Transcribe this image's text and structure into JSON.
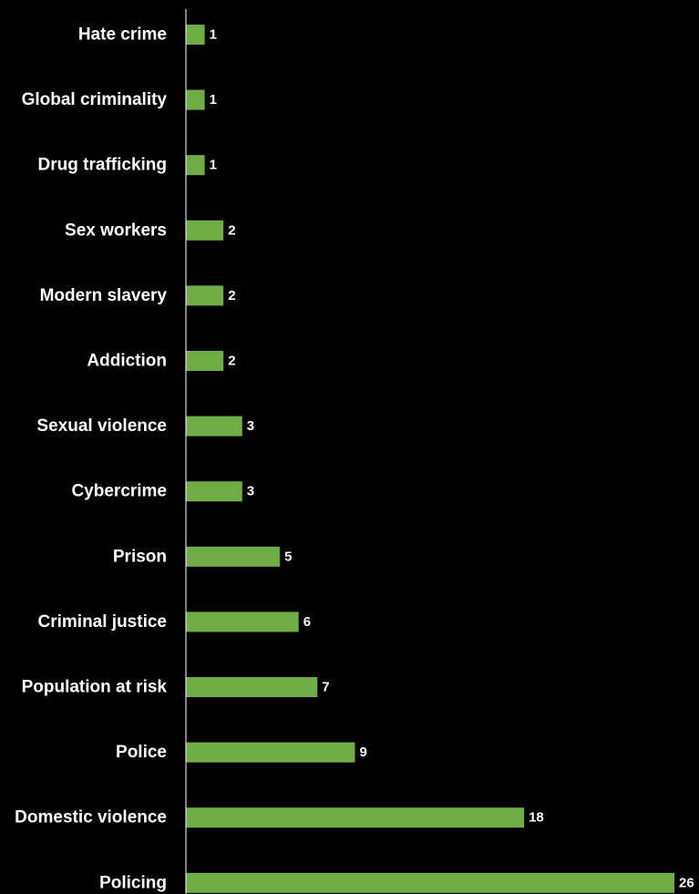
{
  "chart_data": {
    "type": "bar",
    "orientation": "horizontal",
    "title": "",
    "xlabel": "",
    "ylabel": "",
    "categories": [
      "Hate crime",
      "Global criminality",
      "Drug trafficking",
      "Sex workers",
      "Modern slavery",
      "Addiction",
      "Sexual violence",
      "Cybercrime",
      "Prison",
      "Criminal justice",
      "Population at risk",
      "Police",
      "Domestic violence",
      "Policing"
    ],
    "values": [
      1,
      1,
      1,
      2,
      2,
      2,
      3,
      3,
      5,
      6,
      7,
      9,
      18,
      26
    ],
    "xlim": [
      0,
      26
    ],
    "grid": false,
    "legend": "none",
    "data_labels": true,
    "colors": {
      "background": "#000000",
      "bar": "#70ad47",
      "text": "#ffffff",
      "axis": "#ffffff"
    }
  }
}
